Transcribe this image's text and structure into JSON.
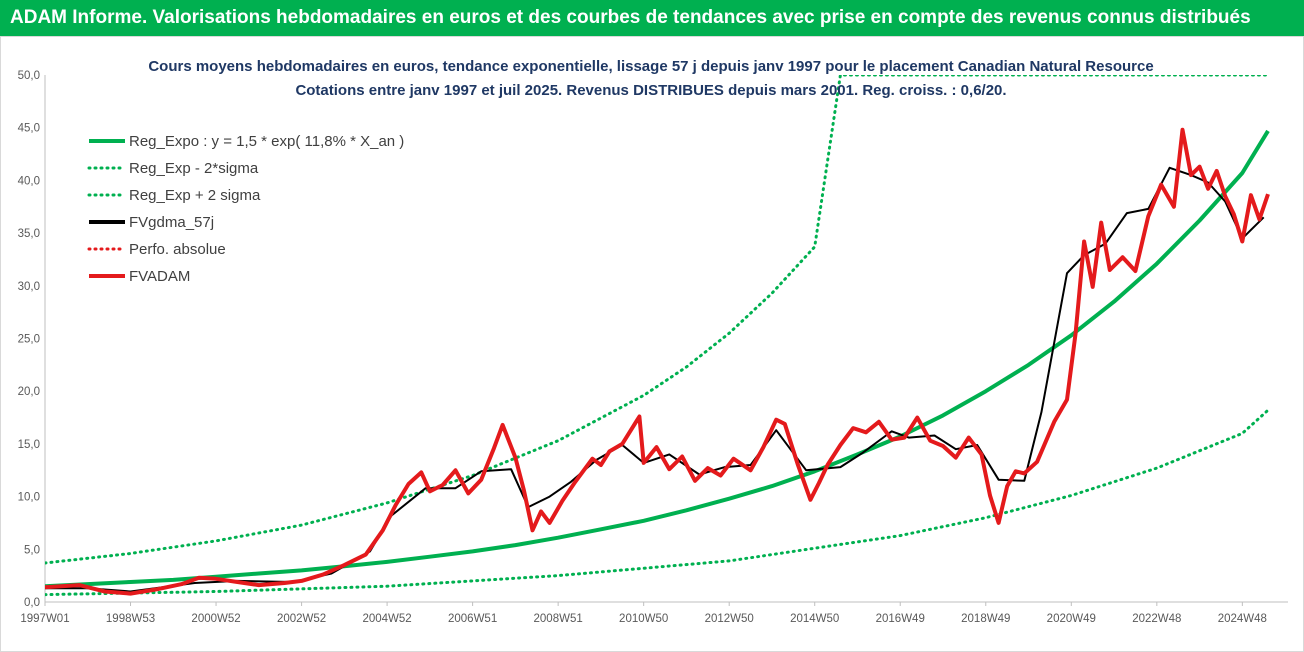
{
  "header": {
    "title": "ADAM Informe. Valorisations hebdomadaires en euros et des courbes de tendances avec prise en compte des revenus connus distribués"
  },
  "chart_data": {
    "type": "line",
    "title_lines": [
      "Cours moyens hebdomadaires en euros, tendance exponentielle, lissage 57 j depuis janv 1997 pour le placement Canadian Natural Resource",
      "Cotations entre janv 1997 et juil 2025. Revenus DISTRIBUES depuis mars 2001. Reg. croiss. : 0,6/20."
    ],
    "xlabel": "",
    "ylabel": "",
    "ylim": [
      0,
      50
    ],
    "xlim": [
      1997.0,
      2025.6
    ],
    "y_ticks": [
      "0,0",
      "5,0",
      "10,0",
      "15,0",
      "20,0",
      "25,0",
      "30,0",
      "35,0",
      "40,0",
      "45,0",
      "50,0"
    ],
    "x_ticks": [
      {
        "label": "1997W01",
        "x": 1997.0
      },
      {
        "label": "1998W53",
        "x": 1999.0
      },
      {
        "label": "2000W52",
        "x": 2001.0
      },
      {
        "label": "2002W52",
        "x": 2003.0
      },
      {
        "label": "2004W52",
        "x": 2005.0
      },
      {
        "label": "2006W51",
        "x": 2007.0
      },
      {
        "label": "2008W51",
        "x": 2009.0
      },
      {
        "label": "2010W50",
        "x": 2011.0
      },
      {
        "label": "2012W50",
        "x": 2013.0
      },
      {
        "label": "2014W50",
        "x": 2015.0
      },
      {
        "label": "2016W49",
        "x": 2017.0
      },
      {
        "label": "2018W49",
        "x": 2019.0
      },
      {
        "label": "2020W49",
        "x": 2021.0
      },
      {
        "label": "2022W48",
        "x": 2023.0
      },
      {
        "label": "2024W48",
        "x": 2025.0
      }
    ],
    "grid": false,
    "legend_position": "top-left",
    "colors": {
      "green": "#00b050",
      "black": "#000000",
      "red": "#e41a1c"
    },
    "series": [
      {
        "name": "Reg_Expo : y = 1,5 * exp( 11,8% *  X_an )",
        "style": "solid",
        "color": "#00b050",
        "width": 4,
        "x": [
          1997,
          1998,
          1999,
          2000,
          2001,
          2002,
          2003,
          2004,
          2005,
          2006,
          2007,
          2008,
          2009,
          2010,
          2011,
          2012,
          2013,
          2014,
          2015,
          2016,
          2017,
          2018,
          2019,
          2020,
          2021,
          2022,
          2023,
          2024,
          2025,
          2025.6
        ],
        "y": [
          1.5,
          1.7,
          1.9,
          2.1,
          2.4,
          2.7,
          3.0,
          3.4,
          3.8,
          4.3,
          4.8,
          5.4,
          6.1,
          6.9,
          7.7,
          8.7,
          9.8,
          11.0,
          12.4,
          14.0,
          15.7,
          17.7,
          20.0,
          22.5,
          25.3,
          28.5,
          32.1,
          36.2,
          40.7,
          44.7
        ]
      },
      {
        "name": "Reg_Exp - 2*sigma",
        "style": "dotted",
        "color": "#00b050",
        "width": 3,
        "x": [
          1997,
          2001,
          2005,
          2009,
          2013,
          2017,
          2019,
          2021,
          2023,
          2025,
          2025.6
        ],
        "y": [
          0.7,
          1.0,
          1.5,
          2.5,
          3.9,
          6.3,
          8.0,
          10.1,
          12.7,
          16.0,
          18.2
        ]
      },
      {
        "name": "Reg_Exp + 2 sigma",
        "style": "dotted",
        "color": "#00b050",
        "width": 3,
        "x": [
          1997,
          1999,
          2001,
          2003,
          2005,
          2007,
          2009,
          2011,
          2012,
          2013,
          2014,
          2015,
          2015.6,
          2022.6,
          2025.6
        ],
        "y": [
          3.7,
          4.6,
          5.8,
          7.3,
          9.4,
          12.0,
          15.3,
          19.6,
          22.3,
          25.5,
          29.3,
          33.7,
          50.0,
          50.0,
          50.0
        ]
      },
      {
        "name": "FVgdma_57j",
        "style": "solid",
        "color": "#000000",
        "width": 2,
        "x": [
          1997.0,
          1998.0,
          1999.0,
          2000.5,
          2001.5,
          2002.8,
          2003.7,
          2004.6,
          2005.1,
          2005.9,
          2006.6,
          2007.2,
          2007.9,
          2008.3,
          2008.8,
          2009.3,
          2009.9,
          2010.5,
          2011.0,
          2011.6,
          2012.3,
          2012.9,
          2013.5,
          2014.1,
          2014.8,
          2015.6,
          2016.1,
          2016.8,
          2017.2,
          2017.8,
          2018.3,
          2018.8,
          2019.3,
          2019.9,
          2020.3,
          2020.9,
          2021.3,
          2021.8,
          2022.3,
          2022.8,
          2023.3,
          2023.8,
          2024.2,
          2024.6,
          2025.0,
          2025.5
        ],
        "y": [
          1.3,
          1.3,
          1.0,
          1.8,
          2.0,
          1.9,
          2.7,
          4.8,
          8.2,
          10.8,
          10.8,
          12.4,
          12.6,
          9.0,
          10.0,
          11.4,
          13.5,
          14.9,
          13.2,
          14.0,
          12.1,
          12.8,
          13.0,
          16.3,
          12.5,
          12.8,
          14.1,
          16.2,
          15.6,
          15.8,
          14.5,
          14.9,
          11.6,
          11.5,
          18.0,
          31.2,
          32.9,
          34.0,
          36.9,
          37.3,
          41.2,
          40.5,
          39.8,
          38.0,
          34.5,
          36.5
        ]
      },
      {
        "name": "Perfo. absolue",
        "style": "dotted",
        "color": "#e41a1c",
        "width": 2,
        "x": [],
        "y": []
      },
      {
        "name": "FVADAM",
        "style": "solid",
        "color": "#e41a1c",
        "width": 4,
        "x": [
          1997.0,
          1997.8,
          1998.4,
          1999.0,
          1999.6,
          2000.2,
          2000.6,
          2001.0,
          2001.5,
          2002.0,
          2002.6,
          2003.0,
          2003.5,
          2004.0,
          2004.5,
          2004.9,
          2005.2,
          2005.5,
          2005.8,
          2006.0,
          2006.3,
          2006.6,
          2006.9,
          2007.2,
          2007.5,
          2007.7,
          2008.0,
          2008.2,
          2008.4,
          2008.6,
          2008.8,
          2009.1,
          2009.4,
          2009.8,
          2010.0,
          2010.2,
          2010.5,
          2010.9,
          2011.0,
          2011.3,
          2011.6,
          2011.9,
          2012.2,
          2012.5,
          2012.8,
          2013.1,
          2013.5,
          2013.8,
          2014.1,
          2014.3,
          2014.6,
          2014.9,
          2015.1,
          2015.3,
          2015.6,
          2015.9,
          2016.2,
          2016.5,
          2016.8,
          2017.1,
          2017.4,
          2017.7,
          2018.0,
          2018.3,
          2018.6,
          2018.9,
          2019.1,
          2019.3,
          2019.5,
          2019.7,
          2019.9,
          2020.2,
          2020.6,
          2020.9,
          2021.1,
          2021.3,
          2021.5,
          2021.7,
          2021.9,
          2022.2,
          2022.5,
          2022.8,
          2023.1,
          2023.4,
          2023.6,
          2023.8,
          2024.0,
          2024.2,
          2024.4,
          2024.6,
          2024.8,
          2025.0,
          2025.2,
          2025.4,
          2025.6
        ],
        "y": [
          1.4,
          1.6,
          1.0,
          0.8,
          1.2,
          1.7,
          2.3,
          2.2,
          1.9,
          1.6,
          1.8,
          2.0,
          2.6,
          3.5,
          4.5,
          6.8,
          9.2,
          11.2,
          12.3,
          10.5,
          11.1,
          12.5,
          10.3,
          11.6,
          14.6,
          16.8,
          13.7,
          10.6,
          6.8,
          8.6,
          7.5,
          9.6,
          11.4,
          13.6,
          13.0,
          14.3,
          15.0,
          17.6,
          13.2,
          14.7,
          12.6,
          13.8,
          11.5,
          12.7,
          12.0,
          13.6,
          12.5,
          14.7,
          17.3,
          16.9,
          13.1,
          9.7,
          11.3,
          13.0,
          14.9,
          16.5,
          16.1,
          17.1,
          15.4,
          15.6,
          17.5,
          15.3,
          14.8,
          13.7,
          15.6,
          14.0,
          10.1,
          7.5,
          11.0,
          12.4,
          12.2,
          13.3,
          17.1,
          19.2,
          25.5,
          34.2,
          29.9,
          36.0,
          31.5,
          32.7,
          31.4,
          36.6,
          39.6,
          37.5,
          44.8,
          40.5,
          41.3,
          39.2,
          40.9,
          38.5,
          36.8,
          34.2,
          38.6,
          36.3,
          38.7
        ]
      }
    ]
  }
}
